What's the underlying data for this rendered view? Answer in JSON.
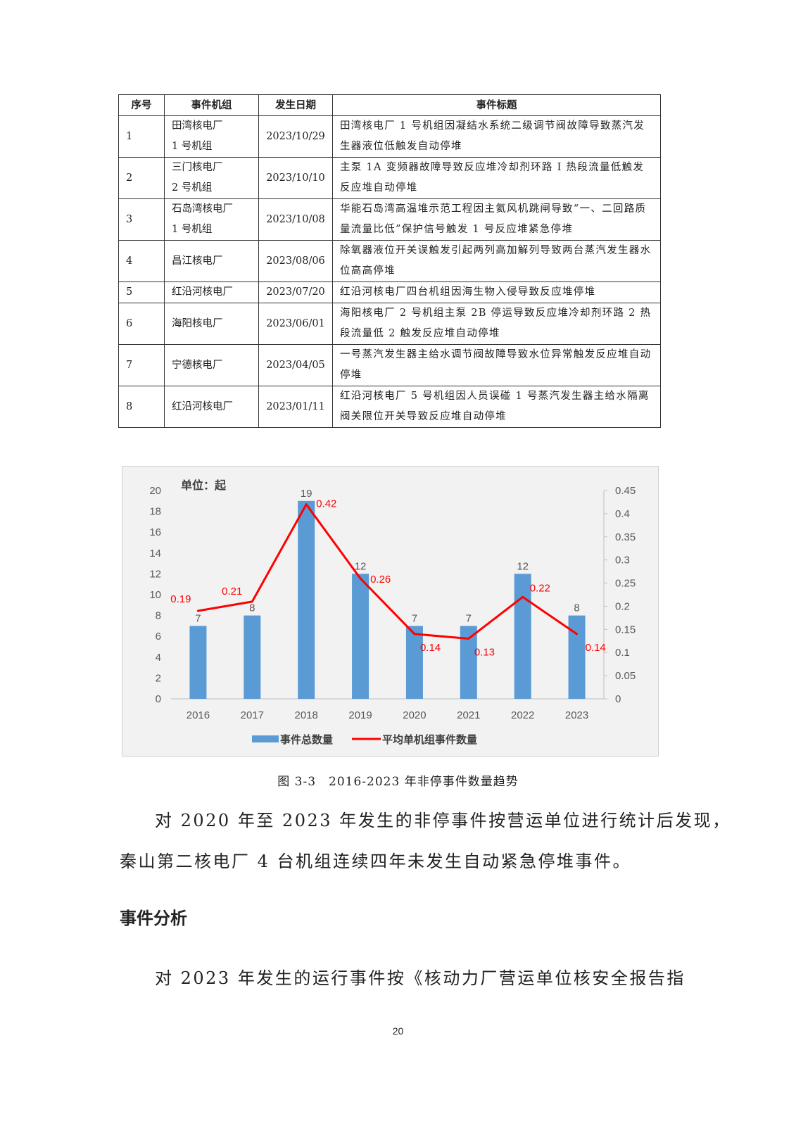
{
  "table": {
    "headers": [
      "序号",
      "事件机组",
      "发生日期",
      "事件标题"
    ],
    "rows": [
      {
        "no": "1",
        "unit_line1": "田湾核电厂",
        "unit_line2": "1 号机组",
        "date": "2023/10/29",
        "title": "田湾核电厂 1 号机组因凝结水系统二级调节阀故障导致蒸汽发生器液位低触发自动停堆"
      },
      {
        "no": "2",
        "unit_line1": "三门核电厂",
        "unit_line2": "2 号机组",
        "date": "2023/10/10",
        "title": "主泵 1A 变频器故障导致反应堆冷却剂环路 I 热段流量低触发反应堆自动停堆"
      },
      {
        "no": "3",
        "unit_line1": "石岛湾核电厂",
        "unit_line2": "1 号机组",
        "date": "2023/10/08",
        "title": "华能石岛湾高温堆示范工程因主氦风机跳闸导致“一、二回路质量流量比低”保护信号触发 1 号反应堆紧急停堆"
      },
      {
        "no": "4",
        "unit_line1": "昌江核电厂",
        "unit_line2": "",
        "date": "2023/08/06",
        "title": "除氧器液位开关误触发引起两列高加解列导致两台蒸汽发生器水位高高停堆"
      },
      {
        "no": "5",
        "unit_line1": "红沿河核电厂",
        "unit_line2": "",
        "date": "2023/07/20",
        "title": "红沿河核电厂四台机组因海生物入侵导致反应堆停堆"
      },
      {
        "no": "6",
        "unit_line1": "海阳核电厂",
        "unit_line2": "",
        "date": "2023/06/01",
        "title": "海阳核电厂 2 号机组主泵 2B 停运导致反应堆冷却剂环路 2 热段流量低 2 触发反应堆自动停堆"
      },
      {
        "no": "7",
        "unit_line1": "宁德核电厂",
        "unit_line2": "",
        "date": "2023/04/05",
        "title": "一号蒸汽发生器主给水调节阀故障导致水位异常触发反应堆自动停堆"
      },
      {
        "no": "8",
        "unit_line1": "红沿河核电厂",
        "unit_line2": "",
        "date": "2023/01/11",
        "title": "红沿河核电厂 5 号机组因人员误碰 1 号蒸汽发生器主给水隔离阀关限位开关导致反应堆自动停堆"
      }
    ]
  },
  "chart_data": {
    "type": "bar+line",
    "unit_label": "单位：起",
    "categories": [
      "2016",
      "2017",
      "2018",
      "2019",
      "2020",
      "2021",
      "2022",
      "2023"
    ],
    "series": [
      {
        "name": "事件总数量",
        "type": "bar",
        "axis": "left",
        "color": "#5b9bd5",
        "values": [
          7,
          8,
          19,
          12,
          7,
          7,
          12,
          8
        ]
      },
      {
        "name": "平均单机组事件数量",
        "type": "line",
        "axis": "right",
        "color": "#ff0000",
        "values": [
          0.19,
          0.21,
          0.42,
          0.26,
          0.14,
          0.13,
          0.22,
          0.14
        ]
      }
    ],
    "y_left": {
      "min": 0,
      "max": 20,
      "ticks": [
        "0",
        "2",
        "4",
        "6",
        "8",
        "10",
        "12",
        "14",
        "16",
        "18",
        "20"
      ]
    },
    "y_right": {
      "min": 0,
      "max": 0.45,
      "ticks": [
        "0",
        "0.05",
        "0.1",
        "0.15",
        "0.2",
        "0.25",
        "0.3",
        "0.35",
        "0.4",
        "0.45"
      ]
    },
    "grid": false,
    "legend": "bottom"
  },
  "caption": "图 3-3　2016-2023 年非停事件数量趋势",
  "para1_line1": "对 2020 年至 2023 年发生的非停事件按营运单位进行统计后发现，",
  "para1_line2": "秦山第二核电厂 4 台机组连续四年未发生自动紧急停堆事件。",
  "heading": "事件分析",
  "para2": "对 2023 年发生的运行事件按《核动力厂营运单位核安全报告指",
  "page_number": "20"
}
